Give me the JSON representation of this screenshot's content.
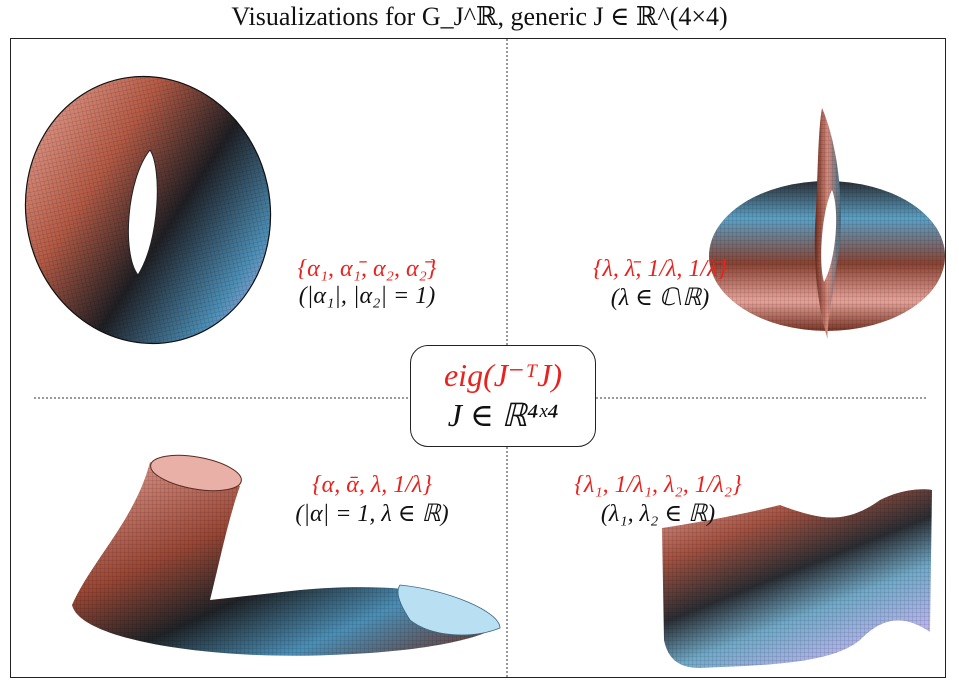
{
  "title": "Visualizations for G_J^ℝ, generic J ∈ ℝ^(4×4)",
  "center": {
    "line1": "eig(J⁻ᵀJ)",
    "line2": "J ∈ ℝ⁴ˣ⁴"
  },
  "quadrants": {
    "top_left": {
      "set": "{α₁, α₁̄, α₂, α₂̄}",
      "condition": "(|α₁|, |α₂| = 1)",
      "surface": "torus"
    },
    "top_right": {
      "set": "{λ, λ̄, 1/λ, 1/λ̄}",
      "condition": "(λ ∈ ℂ\\ℝ)",
      "surface": "pinched-disk"
    },
    "bottom_left": {
      "set": "{α, ᾱ, λ, 1/λ}",
      "condition": "(|α| = 1, λ ∈ ℝ)",
      "surface": "bent-tube"
    },
    "bottom_right": {
      "set": "{λ₁, 1/λ₁, λ₂, 1/λ₂}",
      "condition": "(λ₁, λ₂ ∈ ℝ)",
      "surface": "saddle-sheet"
    }
  },
  "colors": {
    "salmon": "#e8a399",
    "brown": "#6e2b1c",
    "blue": "#6fa9c8",
    "lavender": "#b9b4ee",
    "label_red": "#e8231e"
  }
}
